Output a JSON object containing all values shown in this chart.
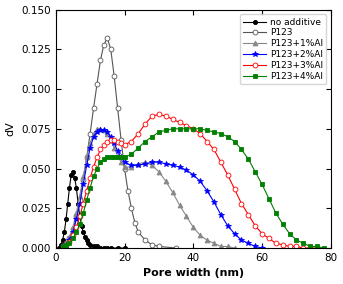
{
  "xlabel": "Pore width (nm)",
  "ylabel": "dV",
  "xlim": [
    0,
    80
  ],
  "ylim": [
    0,
    0.15
  ],
  "yticks": [
    0,
    0.025,
    0.05,
    0.075,
    0.1,
    0.125,
    0.15
  ],
  "xticks": [
    0,
    20,
    40,
    60,
    80
  ],
  "series": [
    {
      "label": "no additive",
      "color": "black",
      "marker": "o",
      "markersize": 3,
      "markerfacecolor": "black",
      "markeredgecolor": "black",
      "linestyle": "-",
      "linewidth": 0.8,
      "x": [
        1.0,
        1.5,
        2.0,
        2.5,
        3.0,
        3.5,
        4.0,
        4.5,
        5.0,
        5.5,
        6.0,
        6.5,
        7.0,
        7.5,
        8.0,
        8.5,
        9.0,
        9.5,
        10.0,
        11.0,
        12.0,
        13.0,
        14.0,
        15.0,
        16.0,
        18.0,
        20.0
      ],
      "y": [
        0.0,
        0.002,
        0.005,
        0.01,
        0.018,
        0.028,
        0.038,
        0.046,
        0.048,
        0.044,
        0.038,
        0.028,
        0.02,
        0.014,
        0.01,
        0.007,
        0.005,
        0.003,
        0.002,
        0.001,
        0.001,
        0.0,
        0.0,
        0.0,
        0.0,
        0.0,
        0.0
      ]
    },
    {
      "label": "P123",
      "color": "#555555",
      "marker": "o",
      "markersize": 3.5,
      "markerfacecolor": "white",
      "markeredgecolor": "#555555",
      "linestyle": "-",
      "linewidth": 0.8,
      "x": [
        2,
        3,
        4,
        5,
        6,
        7,
        8,
        9,
        10,
        11,
        12,
        13,
        14,
        15,
        16,
        17,
        18,
        19,
        20,
        21,
        22,
        23,
        24,
        26,
        28,
        30,
        35
      ],
      "y": [
        0.001,
        0.003,
        0.006,
        0.012,
        0.02,
        0.03,
        0.043,
        0.057,
        0.072,
        0.088,
        0.103,
        0.118,
        0.128,
        0.132,
        0.125,
        0.108,
        0.088,
        0.068,
        0.05,
        0.036,
        0.025,
        0.016,
        0.01,
        0.005,
        0.002,
        0.001,
        0.0
      ]
    },
    {
      "label": "P123+1%Al",
      "color": "#888888",
      "marker": "^",
      "markersize": 3.5,
      "markerfacecolor": "#888888",
      "markeredgecolor": "#888888",
      "linestyle": "-",
      "linewidth": 0.8,
      "x": [
        2,
        3,
        4,
        5,
        6,
        7,
        8,
        9,
        10,
        11,
        12,
        13,
        14,
        15,
        16,
        17,
        18,
        19,
        20,
        22,
        24,
        26,
        28,
        30,
        32,
        34,
        36,
        38,
        40,
        42,
        44,
        46,
        48,
        50,
        52
      ],
      "y": [
        0.001,
        0.003,
        0.007,
        0.013,
        0.022,
        0.033,
        0.045,
        0.057,
        0.066,
        0.072,
        0.075,
        0.075,
        0.074,
        0.072,
        0.068,
        0.063,
        0.058,
        0.054,
        0.051,
        0.051,
        0.053,
        0.054,
        0.052,
        0.048,
        0.042,
        0.035,
        0.027,
        0.02,
        0.013,
        0.008,
        0.005,
        0.003,
        0.001,
        0.001,
        0.0
      ]
    },
    {
      "label": "P123+2%Al",
      "color": "blue",
      "marker": "*",
      "markersize": 4,
      "markerfacecolor": "blue",
      "markeredgecolor": "blue",
      "linestyle": "-",
      "linewidth": 0.8,
      "x": [
        2,
        3,
        4,
        5,
        6,
        7,
        8,
        9,
        10,
        11,
        12,
        13,
        14,
        15,
        16,
        17,
        18,
        19,
        20,
        22,
        24,
        26,
        28,
        30,
        32,
        34,
        36,
        38,
        40,
        42,
        44,
        46,
        48,
        50,
        52,
        54,
        56,
        58,
        60
      ],
      "y": [
        0.001,
        0.002,
        0.005,
        0.01,
        0.018,
        0.028,
        0.04,
        0.052,
        0.063,
        0.07,
        0.073,
        0.074,
        0.074,
        0.073,
        0.07,
        0.066,
        0.061,
        0.057,
        0.054,
        0.052,
        0.052,
        0.053,
        0.054,
        0.054,
        0.053,
        0.052,
        0.051,
        0.049,
        0.046,
        0.042,
        0.036,
        0.029,
        0.021,
        0.014,
        0.009,
        0.005,
        0.003,
        0.001,
        0.0
      ]
    },
    {
      "label": "P123+3%Al",
      "color": "red",
      "marker": "o",
      "markersize": 3.5,
      "markerfacecolor": "white",
      "markeredgecolor": "red",
      "linestyle": "-",
      "linewidth": 0.8,
      "x": [
        2,
        3,
        4,
        5,
        6,
        7,
        8,
        9,
        10,
        11,
        12,
        13,
        14,
        15,
        16,
        17,
        18,
        19,
        20,
        22,
        24,
        26,
        28,
        30,
        32,
        34,
        36,
        38,
        40,
        42,
        44,
        46,
        48,
        50,
        52,
        54,
        56,
        58,
        60,
        62,
        64,
        66,
        68,
        70,
        72,
        74,
        76
      ],
      "y": [
        0.001,
        0.002,
        0.004,
        0.008,
        0.013,
        0.02,
        0.028,
        0.036,
        0.044,
        0.051,
        0.057,
        0.062,
        0.065,
        0.067,
        0.068,
        0.068,
        0.067,
        0.066,
        0.065,
        0.067,
        0.072,
        0.078,
        0.083,
        0.084,
        0.083,
        0.081,
        0.079,
        0.077,
        0.075,
        0.072,
        0.067,
        0.062,
        0.054,
        0.046,
        0.037,
        0.028,
        0.021,
        0.014,
        0.009,
        0.006,
        0.003,
        0.002,
        0.001,
        0.001,
        0.0,
        0.0,
        0.0
      ]
    },
    {
      "label": "P123+4%Al",
      "color": "green",
      "marker": "s",
      "markersize": 3.5,
      "markerfacecolor": "green",
      "markeredgecolor": "green",
      "linestyle": "-",
      "linewidth": 0.8,
      "x": [
        2,
        3,
        4,
        5,
        6,
        7,
        8,
        9,
        10,
        11,
        12,
        13,
        14,
        15,
        16,
        17,
        18,
        19,
        20,
        22,
        24,
        26,
        28,
        30,
        32,
        34,
        36,
        38,
        40,
        42,
        44,
        46,
        48,
        50,
        52,
        54,
        56,
        58,
        60,
        62,
        64,
        66,
        68,
        70,
        72,
        74,
        76,
        78
      ],
      "y": [
        0.001,
        0.002,
        0.003,
        0.006,
        0.01,
        0.015,
        0.022,
        0.03,
        0.038,
        0.045,
        0.05,
        0.054,
        0.056,
        0.057,
        0.057,
        0.057,
        0.057,
        0.057,
        0.057,
        0.059,
        0.063,
        0.067,
        0.07,
        0.073,
        0.074,
        0.075,
        0.075,
        0.075,
        0.075,
        0.075,
        0.074,
        0.073,
        0.072,
        0.07,
        0.067,
        0.062,
        0.056,
        0.048,
        0.04,
        0.031,
        0.022,
        0.015,
        0.009,
        0.005,
        0.003,
        0.001,
        0.001,
        0.0
      ]
    }
  ],
  "legend": {
    "loc": "upper right",
    "fontsize": 6.5,
    "handlelength": 2.5,
    "handletextpad": 0.4,
    "labelspacing": 0.2,
    "borderpad": 0.4,
    "frameon": true
  }
}
